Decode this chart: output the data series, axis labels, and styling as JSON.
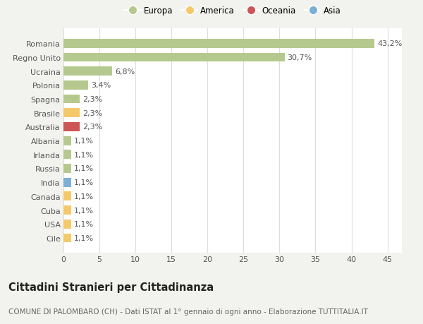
{
  "categories": [
    "Cile",
    "USA",
    "Cuba",
    "Canada",
    "India",
    "Russia",
    "Irlanda",
    "Albania",
    "Australia",
    "Brasile",
    "Spagna",
    "Polonia",
    "Ucraina",
    "Regno Unito",
    "Romania"
  ],
  "values": [
    1.1,
    1.1,
    1.1,
    1.1,
    1.1,
    1.1,
    1.1,
    1.1,
    2.3,
    2.3,
    2.3,
    3.4,
    6.8,
    30.7,
    43.2
  ],
  "colors": [
    "#f5c96a",
    "#f5c96a",
    "#f5c96a",
    "#f5c96a",
    "#7bafd4",
    "#b5c98e",
    "#b5c98e",
    "#b5c98e",
    "#cc5555",
    "#f5c96a",
    "#b5c98e",
    "#b5c98e",
    "#b5c98e",
    "#b5c98e",
    "#b5c98e"
  ],
  "labels": [
    "1,1%",
    "1,1%",
    "1,1%",
    "1,1%",
    "1,1%",
    "1,1%",
    "1,1%",
    "1,1%",
    "2,3%",
    "2,3%",
    "2,3%",
    "3,4%",
    "6,8%",
    "30,7%",
    "43,2%"
  ],
  "legend_items": [
    {
      "label": "Europa",
      "color": "#b5c98e"
    },
    {
      "label": "America",
      "color": "#f5c96a"
    },
    {
      "label": "Oceania",
      "color": "#cc5555"
    },
    {
      "label": "Asia",
      "color": "#7bafd4"
    }
  ],
  "xlim": [
    0,
    47
  ],
  "xticks": [
    0,
    5,
    10,
    15,
    20,
    25,
    30,
    35,
    40,
    45
  ],
  "title": "Cittadini Stranieri per Cittadinanza",
  "subtitle": "COMUNE DI PALOMBARO (CH) - Dati ISTAT al 1° gennaio di ogni anno - Elaborazione TUTTITALIA.IT",
  "bg_color": "#f2f2ee",
  "bar_bg_color": "#ffffff",
  "grid_color": "#dddddd",
  "text_color": "#555555",
  "label_fontsize": 8,
  "tick_fontsize": 8,
  "title_fontsize": 10.5,
  "subtitle_fontsize": 7.5
}
